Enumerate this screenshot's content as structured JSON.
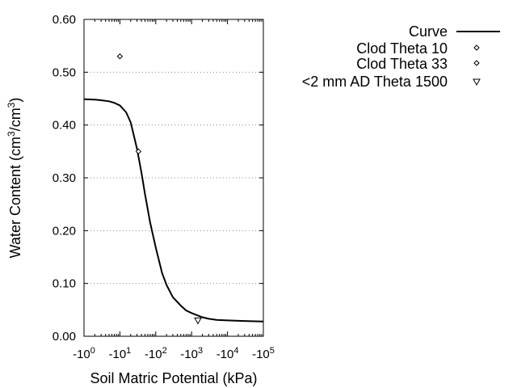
{
  "chart_data": {
    "type": "scatter",
    "title": "",
    "xlabel": "Soil Matric Potential (kPa)",
    "ylabel": "Water Content (cm³/cm³)",
    "ylabel_parts": {
      "base": "Water Content (cm",
      "sup1": "3",
      "mid": "/cm",
      "sup2": "3",
      "end": ")"
    },
    "x_scale": "log",
    "x_note": "values are suction magnitudes in kPa (tick labels show negative potentials)",
    "xlim": [
      1,
      100000
    ],
    "ylim": [
      0,
      0.6
    ],
    "grid": {
      "x": false,
      "y": true
    },
    "legend_position": "right",
    "x_ticks": [
      {
        "value": 1,
        "base": "-10",
        "exp": "0"
      },
      {
        "value": 10,
        "base": "-10",
        "exp": "1"
      },
      {
        "value": 100,
        "base": "-10",
        "exp": "2"
      },
      {
        "value": 1000,
        "base": "-10",
        "exp": "3"
      },
      {
        "value": 10000,
        "base": "-10",
        "exp": "4"
      },
      {
        "value": 100000,
        "base": "-10",
        "exp": "5"
      }
    ],
    "y_ticks": [
      {
        "value": 0,
        "label": "0.00"
      },
      {
        "value": 0.1,
        "label": "0.10"
      },
      {
        "value": 0.2,
        "label": "0.20"
      },
      {
        "value": 0.3,
        "label": "0.30"
      },
      {
        "value": 0.4,
        "label": "0.40"
      },
      {
        "value": 0.5,
        "label": "0.50"
      },
      {
        "value": 0.6,
        "label": "0.60"
      }
    ],
    "series": [
      {
        "name": "Curve",
        "kind": "line",
        "x": [
          1,
          2,
          3,
          5,
          7,
          10,
          15,
          20,
          30,
          40,
          50,
          70,
          100,
          150,
          200,
          300,
          500,
          700,
          1000,
          2000,
          3000,
          5000,
          10000,
          30000,
          100000
        ],
        "y": [
          0.449,
          0.448,
          0.447,
          0.445,
          0.442,
          0.437,
          0.424,
          0.405,
          0.355,
          0.31,
          0.27,
          0.215,
          0.168,
          0.12,
          0.097,
          0.074,
          0.058,
          0.049,
          0.044,
          0.036,
          0.033,
          0.031,
          0.03,
          0.029,
          0.028
        ]
      },
      {
        "name": "Clod Theta 10",
        "kind": "scatter",
        "marker": "diamond",
        "x": [
          10
        ],
        "y": [
          0.53
        ]
      },
      {
        "name": "Clod Theta 33",
        "kind": "scatter",
        "marker": "diamond",
        "x": [
          33
        ],
        "y": [
          0.35
        ]
      },
      {
        "name": "<2 mm AD Theta 1500",
        "kind": "scatter",
        "marker": "triangle-down",
        "x": [
          1500
        ],
        "y": [
          0.03
        ]
      }
    ]
  }
}
